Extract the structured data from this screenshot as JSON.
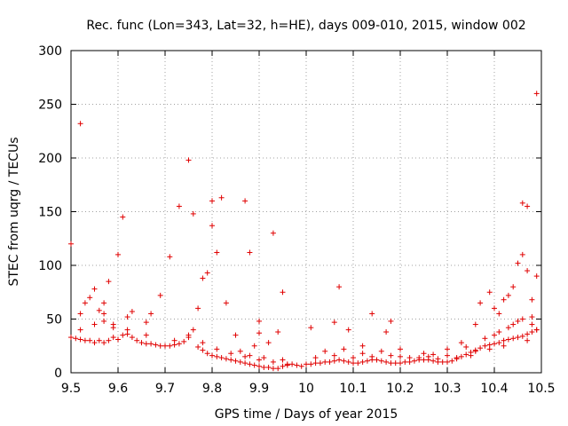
{
  "chart_data": {
    "type": "scatter",
    "title": "Rec. func (Lon=343, Lat=32, h=HE), days 009-010, 2015, window 002",
    "xlabel": "GPS time / Days of year 2015",
    "ylabel": "STEC from uqrg / TECUs",
    "xlim": [
      9.5,
      10.5
    ],
    "ylim": [
      0,
      300
    ],
    "xticks": [
      "9.5",
      "9.6",
      "9.7",
      "9.8",
      "9.9",
      "10",
      "10.1",
      "10.2",
      "10.3",
      "10.4",
      "10.5"
    ],
    "yticks": [
      "0",
      "50",
      "100",
      "150",
      "200",
      "250",
      "300"
    ],
    "grid": true,
    "marker": "+",
    "color": "#e00000",
    "points": [
      [
        9.5,
        120
      ],
      [
        9.52,
        232
      ],
      [
        9.52,
        55
      ],
      [
        9.53,
        65
      ],
      [
        9.54,
        70
      ],
      [
        9.55,
        78
      ],
      [
        9.56,
        58
      ],
      [
        9.57,
        55
      ],
      [
        9.57,
        65
      ],
      [
        9.58,
        85
      ],
      [
        9.59,
        45
      ],
      [
        9.6,
        110
      ],
      [
        9.61,
        145
      ],
      [
        9.62,
        52
      ],
      [
        9.63,
        57
      ],
      [
        9.66,
        47
      ],
      [
        9.67,
        55
      ],
      [
        9.69,
        72
      ],
      [
        9.71,
        108
      ],
      [
        9.73,
        155
      ],
      [
        9.75,
        198
      ],
      [
        9.76,
        148
      ],
      [
        9.77,
        60
      ],
      [
        9.78,
        88
      ],
      [
        9.79,
        93
      ],
      [
        9.8,
        137
      ],
      [
        9.8,
        160
      ],
      [
        9.81,
        112
      ],
      [
        9.82,
        163
      ],
      [
        9.83,
        65
      ],
      [
        9.85,
        35
      ],
      [
        9.87,
        160
      ],
      [
        9.88,
        112
      ],
      [
        9.89,
        25
      ],
      [
        9.9,
        48
      ],
      [
        9.9,
        37
      ],
      [
        9.92,
        28
      ],
      [
        9.93,
        130
      ],
      [
        9.94,
        38
      ],
      [
        9.95,
        75
      ],
      [
        10.01,
        42
      ],
      [
        10.06,
        47
      ],
      [
        10.07,
        80
      ],
      [
        10.09,
        40
      ],
      [
        10.12,
        25
      ],
      [
        10.14,
        55
      ],
      [
        10.17,
        38
      ],
      [
        10.18,
        48
      ],
      [
        10.2,
        22
      ],
      [
        10.25,
        18
      ],
      [
        10.3,
        22
      ],
      [
        10.33,
        28
      ],
      [
        10.36,
        45
      ],
      [
        10.37,
        65
      ],
      [
        10.39,
        75
      ],
      [
        10.4,
        60
      ],
      [
        10.41,
        55
      ],
      [
        10.42,
        68
      ],
      [
        10.43,
        72
      ],
      [
        10.44,
        80
      ],
      [
        10.45,
        102
      ],
      [
        10.46,
        110
      ],
      [
        10.46,
        158
      ],
      [
        10.47,
        95
      ],
      [
        10.47,
        155
      ],
      [
        10.48,
        68
      ],
      [
        10.49,
        260
      ],
      [
        10.49,
        90
      ],
      [
        10.48,
        45
      ],
      [
        10.49,
        40
      ],
      [
        9.5,
        33
      ],
      [
        9.51,
        32
      ],
      [
        9.52,
        31
      ],
      [
        9.53,
        30
      ],
      [
        9.54,
        30
      ],
      [
        9.55,
        28
      ],
      [
        9.56,
        30
      ],
      [
        9.57,
        28
      ],
      [
        9.58,
        30
      ],
      [
        9.59,
        33
      ],
      [
        9.6,
        31
      ],
      [
        9.61,
        35
      ],
      [
        9.62,
        36
      ],
      [
        9.63,
        33
      ],
      [
        9.64,
        30
      ],
      [
        9.65,
        28
      ],
      [
        9.66,
        27
      ],
      [
        9.67,
        27
      ],
      [
        9.68,
        26
      ],
      [
        9.69,
        25
      ],
      [
        9.7,
        25
      ],
      [
        9.71,
        25
      ],
      [
        9.72,
        26
      ],
      [
        9.73,
        27
      ],
      [
        9.74,
        29
      ],
      [
        9.75,
        33
      ],
      [
        9.76,
        40
      ],
      [
        9.77,
        24
      ],
      [
        9.78,
        21
      ],
      [
        9.79,
        18
      ],
      [
        9.8,
        16
      ],
      [
        9.81,
        15
      ],
      [
        9.82,
        14
      ],
      [
        9.83,
        13
      ],
      [
        9.84,
        12
      ],
      [
        9.85,
        11
      ],
      [
        9.86,
        10
      ],
      [
        9.87,
        9
      ],
      [
        9.88,
        8
      ],
      [
        9.89,
        7
      ],
      [
        9.9,
        6
      ],
      [
        9.91,
        5
      ],
      [
        9.92,
        5
      ],
      [
        9.93,
        4
      ],
      [
        9.94,
        4
      ],
      [
        9.95,
        6
      ],
      [
        9.96,
        7
      ],
      [
        9.97,
        8
      ],
      [
        9.98,
        7
      ],
      [
        9.99,
        6
      ],
      [
        10.0,
        8
      ],
      [
        10.01,
        8
      ],
      [
        10.02,
        9
      ],
      [
        10.03,
        9
      ],
      [
        10.04,
        10
      ],
      [
        10.05,
        10
      ],
      [
        10.06,
        11
      ],
      [
        10.07,
        12
      ],
      [
        10.08,
        11
      ],
      [
        10.09,
        10
      ],
      [
        10.1,
        9
      ],
      [
        10.11,
        9
      ],
      [
        10.12,
        10
      ],
      [
        10.13,
        11
      ],
      [
        10.14,
        12
      ],
      [
        10.15,
        12
      ],
      [
        10.16,
        11
      ],
      [
        10.17,
        10
      ],
      [
        10.18,
        9
      ],
      [
        10.19,
        9
      ],
      [
        10.2,
        9
      ],
      [
        10.21,
        10
      ],
      [
        10.22,
        10
      ],
      [
        10.23,
        11
      ],
      [
        10.24,
        12
      ],
      [
        10.25,
        12
      ],
      [
        10.26,
        12
      ],
      [
        10.27,
        11
      ],
      [
        10.28,
        10
      ],
      [
        10.29,
        10
      ],
      [
        10.3,
        10
      ],
      [
        10.31,
        11
      ],
      [
        10.32,
        13
      ],
      [
        10.33,
        15
      ],
      [
        10.34,
        17
      ],
      [
        10.35,
        19
      ],
      [
        10.36,
        21
      ],
      [
        10.37,
        23
      ],
      [
        10.38,
        25
      ],
      [
        10.39,
        26
      ],
      [
        10.4,
        27
      ],
      [
        10.41,
        28
      ],
      [
        10.42,
        30
      ],
      [
        10.43,
        31
      ],
      [
        10.44,
        32
      ],
      [
        10.45,
        33
      ],
      [
        10.46,
        34
      ],
      [
        10.47,
        36
      ],
      [
        10.48,
        38
      ],
      [
        10.49,
        40
      ],
      [
        9.52,
        40
      ],
      [
        9.55,
        45
      ],
      [
        9.57,
        48
      ],
      [
        9.59,
        42
      ],
      [
        9.62,
        40
      ],
      [
        9.66,
        35
      ],
      [
        9.72,
        30
      ],
      [
        9.75,
        35
      ],
      [
        9.78,
        28
      ],
      [
        9.81,
        22
      ],
      [
        9.84,
        18
      ],
      [
        9.87,
        15
      ],
      [
        9.9,
        12
      ],
      [
        9.93,
        10
      ],
      [
        9.96,
        8
      ],
      [
        10.02,
        14
      ],
      [
        10.06,
        16
      ],
      [
        10.1,
        14
      ],
      [
        10.14,
        15
      ],
      [
        10.18,
        16
      ],
      [
        10.22,
        14
      ],
      [
        10.26,
        15
      ],
      [
        10.3,
        16
      ],
      [
        10.34,
        24
      ],
      [
        10.38,
        32
      ],
      [
        10.41,
        38
      ],
      [
        10.44,
        45
      ],
      [
        10.46,
        50
      ],
      [
        10.48,
        52
      ],
      [
        10.47,
        30
      ],
      [
        9.86,
        20
      ],
      [
        9.88,
        16
      ],
      [
        9.91,
        14
      ],
      [
        9.95,
        12
      ],
      [
        10.04,
        20
      ],
      [
        10.08,
        22
      ],
      [
        10.12,
        18
      ],
      [
        10.16,
        20
      ],
      [
        10.2,
        15
      ],
      [
        10.24,
        14
      ],
      [
        10.28,
        13
      ],
      [
        10.32,
        14
      ],
      [
        10.36,
        20
      ],
      [
        10.4,
        35
      ],
      [
        10.43,
        42
      ],
      [
        10.45,
        48
      ],
      [
        10.42,
        25
      ],
      [
        10.39,
        22
      ],
      [
        10.35,
        16
      ],
      [
        10.27,
        17
      ]
    ]
  }
}
